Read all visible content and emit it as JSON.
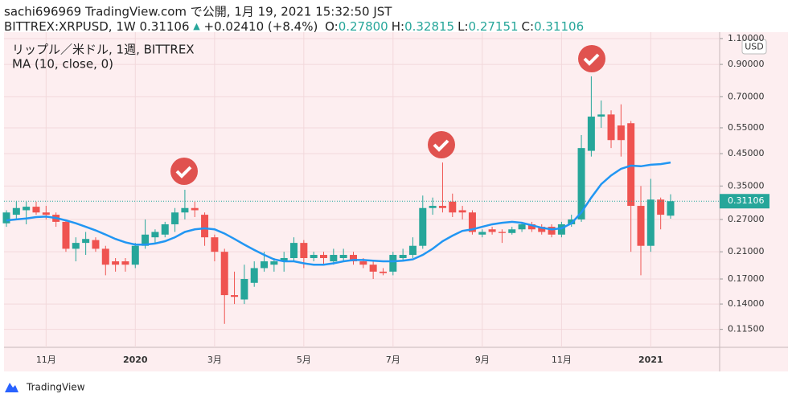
{
  "header": {
    "line1": "sachi696969 TradingView.com で公開, 1月 19, 2021 15:32:50 JST",
    "symbol": "BITTREX:XRPUSD, 1W 0.31106",
    "arrow": "▲",
    "change": "+0.02410 (+8.4%)",
    "ohlc": [
      {
        "label": "O:",
        "value": "0.27800"
      },
      {
        "label": "H:",
        "value": "0.32815"
      },
      {
        "label": "L:",
        "value": "0.27151"
      },
      {
        "label": "C:",
        "value": "0.31106"
      }
    ]
  },
  "chart_data": {
    "type": "candlestick",
    "name": "リップル／米ドル, 1週, BITTREX",
    "categories": [
      null,
      null,
      null,
      null,
      "11月",
      null,
      null,
      null,
      null,
      null,
      null,
      null,
      null,
      "2020",
      null,
      null,
      null,
      null,
      null,
      null,
      null,
      "3月",
      null,
      null,
      null,
      null,
      null,
      null,
      null,
      null,
      "5月",
      null,
      null,
      null,
      null,
      null,
      null,
      null,
      null,
      "7月",
      null,
      null,
      null,
      null,
      null,
      null,
      null,
      null,
      "9月",
      null,
      null,
      null,
      null,
      null,
      null,
      null,
      "11月",
      null,
      null,
      null,
      null,
      null,
      null,
      null,
      null,
      "2021",
      null,
      null
    ],
    "open": [
      0.262,
      0.28,
      0.29,
      0.298,
      0.285,
      0.28,
      0.265,
      0.215,
      0.225,
      0.23,
      0.215,
      0.195,
      0.195,
      0.19,
      0.22,
      0.235,
      0.24,
      0.26,
      0.285,
      0.295,
      0.28,
      0.235,
      0.21,
      0.15,
      0.145,
      0.165,
      0.185,
      0.19,
      0.195,
      0.2,
      0.225,
      0.2,
      0.205,
      0.195,
      0.2,
      0.205,
      0.195,
      0.19,
      0.18,
      0.18,
      0.2,
      0.205,
      0.22,
      0.295,
      0.3,
      0.31,
      0.29,
      0.285,
      0.24,
      0.25,
      0.245,
      0.243,
      0.25,
      0.26,
      0.255,
      0.255,
      0.24,
      0.26,
      0.27,
      0.46,
      0.6,
      0.61,
      0.56,
      0.57,
      0.3,
      0.22,
      0.315,
      0.278
    ],
    "high": [
      0.29,
      0.31,
      0.31,
      0.31,
      0.3,
      0.285,
      0.27,
      0.235,
      0.245,
      0.235,
      0.22,
      0.2,
      0.2,
      0.225,
      0.27,
      0.25,
      0.265,
      0.295,
      0.34,
      0.31,
      0.285,
      0.24,
      0.215,
      0.18,
      0.19,
      0.195,
      0.21,
      0.2,
      0.21,
      0.235,
      0.23,
      0.21,
      0.21,
      0.215,
      0.215,
      0.21,
      0.2,
      0.195,
      0.185,
      0.21,
      0.215,
      0.235,
      0.325,
      0.32,
      0.42,
      0.33,
      0.3,
      0.29,
      0.25,
      0.255,
      0.25,
      0.255,
      0.265,
      0.265,
      0.26,
      0.26,
      0.265,
      0.28,
      0.52,
      0.82,
      0.68,
      0.63,
      0.66,
      0.58,
      0.35,
      0.37,
      0.32,
      0.32815
    ],
    "low": [
      0.255,
      0.27,
      0.26,
      0.28,
      0.27,
      0.255,
      0.21,
      0.195,
      0.205,
      0.21,
      0.175,
      0.18,
      0.18,
      0.185,
      0.215,
      0.225,
      0.235,
      0.245,
      0.27,
      0.275,
      0.22,
      0.195,
      0.12,
      0.14,
      0.14,
      0.16,
      0.18,
      0.18,
      0.18,
      0.195,
      0.185,
      0.195,
      0.19,
      0.19,
      0.195,
      0.19,
      0.185,
      0.17,
      0.175,
      0.175,
      0.195,
      0.2,
      0.215,
      0.28,
      0.285,
      0.275,
      0.27,
      0.24,
      0.235,
      0.24,
      0.225,
      0.24,
      0.245,
      0.245,
      0.24,
      0.235,
      0.235,
      0.255,
      0.265,
      0.44,
      0.55,
      0.47,
      0.44,
      0.21,
      0.175,
      0.21,
      0.25,
      0.27151
    ],
    "close": [
      0.285,
      0.295,
      0.298,
      0.285,
      0.28,
      0.265,
      0.215,
      0.225,
      0.232,
      0.215,
      0.19,
      0.19,
      0.19,
      0.22,
      0.24,
      0.245,
      0.26,
      0.285,
      0.295,
      0.29,
      0.235,
      0.21,
      0.15,
      0.148,
      0.17,
      0.185,
      0.195,
      0.195,
      0.2,
      0.225,
      0.2,
      0.205,
      0.2,
      0.205,
      0.205,
      0.195,
      0.19,
      0.18,
      0.178,
      0.205,
      0.205,
      0.22,
      0.295,
      0.3,
      0.295,
      0.285,
      0.285,
      0.245,
      0.245,
      0.245,
      0.243,
      0.25,
      0.26,
      0.25,
      0.245,
      0.24,
      0.26,
      0.27,
      0.47,
      0.6,
      0.61,
      0.5,
      0.5,
      0.3,
      0.22,
      0.315,
      0.28,
      0.31106
    ],
    "up_color": "#26a69a",
    "down_color": "#ef5350",
    "series": [
      {
        "name": "MA (10, close, 0)",
        "color": "#2196f3",
        "values": [
          0.268,
          0.27,
          0.272,
          0.275,
          0.276,
          0.273,
          0.268,
          0.262,
          0.255,
          0.248,
          0.24,
          0.232,
          0.226,
          0.222,
          0.222,
          0.224,
          0.228,
          0.235,
          0.245,
          0.25,
          0.252,
          0.25,
          0.242,
          0.232,
          0.222,
          0.213,
          0.205,
          0.198,
          0.195,
          0.195,
          0.192,
          0.19,
          0.19,
          0.192,
          0.195,
          0.197,
          0.197,
          0.196,
          0.195,
          0.195,
          0.196,
          0.198,
          0.205,
          0.215,
          0.228,
          0.238,
          0.247,
          0.25,
          0.255,
          0.26,
          0.263,
          0.265,
          0.263,
          0.258,
          0.253,
          0.25,
          0.252,
          0.262,
          0.285,
          0.32,
          0.355,
          0.38,
          0.4,
          0.41,
          0.408,
          0.413,
          0.415,
          0.42
        ]
      }
    ],
    "ylim": [
      0.1,
      1.156
    ],
    "log_scale": true,
    "grid": true,
    "yticks": [
      {
        "value": 1.1,
        "label": "1.10000"
      },
      {
        "value": 0.9,
        "label": "0.90000"
      },
      {
        "value": 0.7,
        "label": "0.70000"
      },
      {
        "value": 0.55,
        "label": "0.55000"
      },
      {
        "value": 0.45,
        "label": "0.45000"
      },
      {
        "value": 0.35,
        "label": "0.35000"
      },
      {
        "value": 0.27,
        "label": "0.27000"
      },
      {
        "value": 0.21,
        "label": "0.21000"
      },
      {
        "value": 0.17,
        "label": "0.17000"
      },
      {
        "value": 0.14,
        "label": "0.14000"
      },
      {
        "value": 0.115,
        "label": "0.11500"
      }
    ],
    "currency": "USD",
    "last_price": {
      "value": 0.31106,
      "label": "0.31106"
    }
  },
  "footer": "TradingView"
}
